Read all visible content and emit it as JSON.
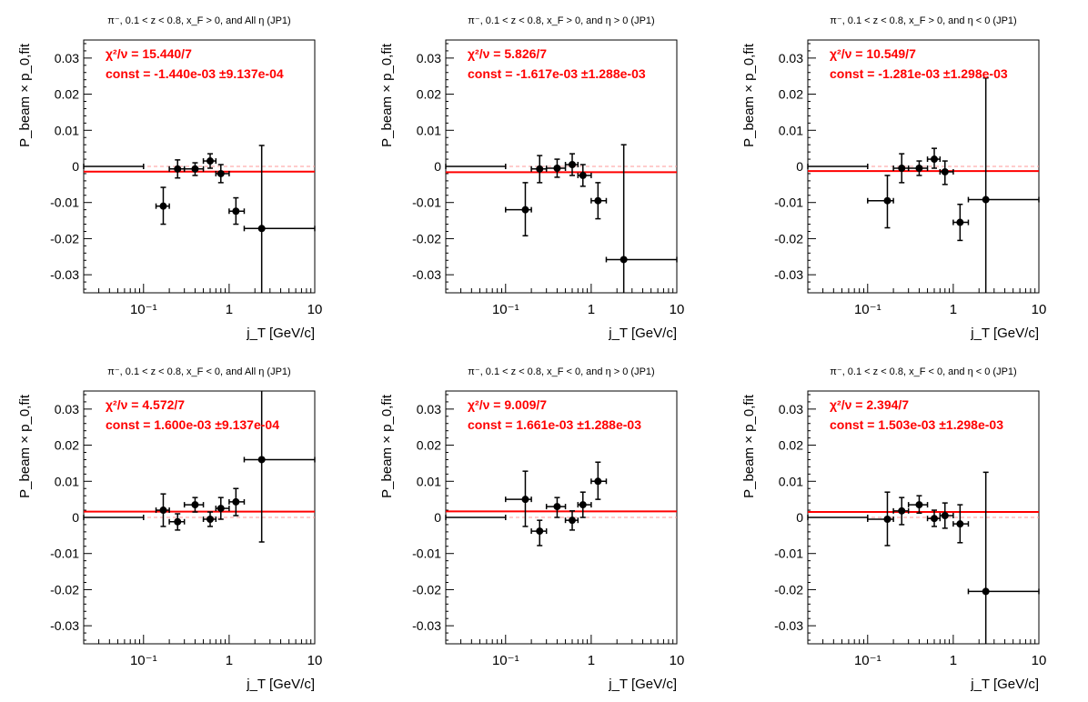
{
  "colors": {
    "fit_line": "#ff0000",
    "annotation": "#ff0000",
    "points": "#000000",
    "zero_line": "#ff9a9a",
    "axes": "#000000"
  },
  "chart_data": [
    {
      "type": "scatter",
      "title": "π⁻, 0.1 < z < 0.8, x_F > 0, and All η (JP1)",
      "xlabel": "j_T [GeV/c]",
      "ylabel": "P_beam × p_0,fit",
      "xscale": "log",
      "xlim": [
        0.02,
        10
      ],
      "ylim": [
        -0.035,
        0.035
      ],
      "xticklabels": [
        "10⁻¹",
        "1",
        "10"
      ],
      "yticklabels": [
        "-0.03",
        "-0.02",
        "-0.01",
        "0",
        "0.01",
        "0.02",
        "0.03"
      ],
      "chi2_label": "χ²/ν = 15.440/7",
      "const_label": "const = -1.440e-03  ±9.137e-04",
      "fit_const": -0.00144,
      "points": [
        {
          "x": 0.1,
          "y": 0.0,
          "xlo": 0.015,
          "xhi": 0.1,
          "ylo": 0.0,
          "yhi": 0.0
        },
        {
          "x": 0.17,
          "y": -0.011,
          "xlo": 0.14,
          "xhi": 0.2,
          "ylo": -0.016,
          "yhi": -0.0058
        },
        {
          "x": 0.25,
          "y": -0.0007,
          "xlo": 0.2,
          "xhi": 0.3,
          "ylo": -0.0032,
          "yhi": 0.0018
        },
        {
          "x": 0.4,
          "y": -0.0007,
          "xlo": 0.3,
          "xhi": 0.5,
          "ylo": -0.0025,
          "yhi": 0.001
        },
        {
          "x": 0.6,
          "y": 0.0015,
          "xlo": 0.5,
          "xhi": 0.7,
          "ylo": -0.0005,
          "yhi": 0.0035
        },
        {
          "x": 0.8,
          "y": -0.002,
          "xlo": 0.7,
          "xhi": 1.0,
          "ylo": -0.0045,
          "yhi": 0.0005
        },
        {
          "x": 1.2,
          "y": -0.0124,
          "xlo": 1.0,
          "xhi": 1.5,
          "ylo": -0.016,
          "yhi": -0.0087
        },
        {
          "x": 2.4,
          "y": -0.0172,
          "xlo": 1.5,
          "xhi": 10,
          "ylo": -0.049,
          "yhi": 0.0058
        }
      ]
    },
    {
      "type": "scatter",
      "title": "π⁻, 0.1 < z < 0.8, x_F > 0, and η > 0 (JP1)",
      "xlabel": "j_T [GeV/c]",
      "ylabel": "P_beam × p_0,fit",
      "xscale": "log",
      "xlim": [
        0.02,
        10
      ],
      "ylim": [
        -0.035,
        0.035
      ],
      "xticklabels": [
        "10⁻¹",
        "1",
        "10"
      ],
      "yticklabels": [
        "-0.03",
        "-0.02",
        "-0.01",
        "0",
        "0.01",
        "0.02",
        "0.03"
      ],
      "chi2_label": "χ²/ν = 5.826/7",
      "const_label": "const = -1.617e-03  ±1.288e-03",
      "fit_const": -0.001617,
      "points": [
        {
          "x": 0.1,
          "y": 0.0,
          "xlo": 0.015,
          "xhi": 0.1,
          "ylo": 0.0,
          "yhi": 0.0
        },
        {
          "x": 0.17,
          "y": -0.012,
          "xlo": 0.1,
          "xhi": 0.2,
          "ylo": -0.0192,
          "yhi": -0.0045
        },
        {
          "x": 0.25,
          "y": -0.0007,
          "xlo": 0.2,
          "xhi": 0.3,
          "ylo": -0.0045,
          "yhi": 0.003
        },
        {
          "x": 0.4,
          "y": -0.0005,
          "xlo": 0.3,
          "xhi": 0.5,
          "ylo": -0.003,
          "yhi": 0.002
        },
        {
          "x": 0.6,
          "y": 0.0005,
          "xlo": 0.5,
          "xhi": 0.7,
          "ylo": -0.0025,
          "yhi": 0.0035
        },
        {
          "x": 0.8,
          "y": -0.0025,
          "xlo": 0.7,
          "xhi": 1.0,
          "ylo": -0.0055,
          "yhi": 0.0005
        },
        {
          "x": 1.2,
          "y": -0.0095,
          "xlo": 1.0,
          "xhi": 1.5,
          "ylo": -0.0145,
          "yhi": -0.0045
        },
        {
          "x": 2.4,
          "y": -0.0258,
          "xlo": 1.5,
          "xhi": 10,
          "ylo": -0.058,
          "yhi": 0.006
        }
      ]
    },
    {
      "type": "scatter",
      "title": "π⁻, 0.1 < z < 0.8, x_F > 0, and η < 0 (JP1)",
      "xlabel": "j_T [GeV/c]",
      "ylabel": "P_beam × p_0,fit",
      "xscale": "log",
      "xlim": [
        0.02,
        10
      ],
      "ylim": [
        -0.035,
        0.035
      ],
      "xticklabels": [
        "10⁻¹",
        "1",
        "10"
      ],
      "yticklabels": [
        "-0.03",
        "-0.02",
        "-0.01",
        "0",
        "0.01",
        "0.02",
        "0.03"
      ],
      "chi2_label": "χ²/ν = 10.549/7",
      "const_label": "const = -1.281e-03  ±1.298e-03",
      "fit_const": -0.001281,
      "points": [
        {
          "x": 0.1,
          "y": 0.0,
          "xlo": 0.015,
          "xhi": 0.1,
          "ylo": 0.0,
          "yhi": 0.0
        },
        {
          "x": 0.17,
          "y": -0.0095,
          "xlo": 0.1,
          "xhi": 0.2,
          "ylo": -0.017,
          "yhi": -0.0025
        },
        {
          "x": 0.25,
          "y": -0.0005,
          "xlo": 0.2,
          "xhi": 0.3,
          "ylo": -0.0045,
          "yhi": 0.0035
        },
        {
          "x": 0.4,
          "y": -0.0005,
          "xlo": 0.3,
          "xhi": 0.5,
          "ylo": -0.0025,
          "yhi": 0.0015
        },
        {
          "x": 0.6,
          "y": 0.002,
          "xlo": 0.5,
          "xhi": 0.7,
          "ylo": -0.0005,
          "yhi": 0.005
        },
        {
          "x": 0.8,
          "y": -0.0015,
          "xlo": 0.7,
          "xhi": 1.0,
          "ylo": -0.005,
          "yhi": 0.0015
        },
        {
          "x": 1.2,
          "y": -0.0155,
          "xlo": 1.0,
          "xhi": 1.5,
          "ylo": -0.0205,
          "yhi": -0.0105
        },
        {
          "x": 2.4,
          "y": -0.0092,
          "xlo": 1.5,
          "xhi": 10,
          "ylo": -0.043,
          "yhi": 0.0245
        }
      ]
    },
    {
      "type": "scatter",
      "title": "π⁻, 0.1 < z < 0.8, x_F < 0, and All η (JP1)",
      "xlabel": "j_T [GeV/c]",
      "ylabel": "P_beam × p_0,fit",
      "xscale": "log",
      "xlim": [
        0.02,
        10
      ],
      "ylim": [
        -0.035,
        0.035
      ],
      "xticklabels": [
        "10⁻¹",
        "1",
        "10"
      ],
      "yticklabels": [
        "-0.03",
        "-0.02",
        "-0.01",
        "0",
        "0.01",
        "0.02",
        "0.03"
      ],
      "chi2_label": "χ²/ν = 4.572/7",
      "const_label": "const = 1.600e-03  ±9.137e-04",
      "fit_const": 0.0016,
      "points": [
        {
          "x": 0.1,
          "y": 0.0,
          "xlo": 0.015,
          "xhi": 0.1,
          "ylo": 0.0,
          "yhi": 0.0
        },
        {
          "x": 0.17,
          "y": 0.002,
          "xlo": 0.14,
          "xhi": 0.2,
          "ylo": -0.0025,
          "yhi": 0.0065
        },
        {
          "x": 0.25,
          "y": -0.0012,
          "xlo": 0.2,
          "xhi": 0.3,
          "ylo": -0.0035,
          "yhi": 0.001
        },
        {
          "x": 0.4,
          "y": 0.0035,
          "xlo": 0.3,
          "xhi": 0.5,
          "ylo": 0.0015,
          "yhi": 0.0055
        },
        {
          "x": 0.6,
          "y": -0.0005,
          "xlo": 0.5,
          "xhi": 0.7,
          "ylo": -0.0025,
          "yhi": 0.0015
        },
        {
          "x": 0.8,
          "y": 0.0025,
          "xlo": 0.7,
          "xhi": 1.0,
          "ylo": -0.0005,
          "yhi": 0.0055
        },
        {
          "x": 1.2,
          "y": 0.0043,
          "xlo": 1.0,
          "xhi": 1.5,
          "ylo": 0.0005,
          "yhi": 0.008
        },
        {
          "x": 2.4,
          "y": 0.016,
          "xlo": 1.5,
          "xhi": 10,
          "ylo": -0.0068,
          "yhi": 0.046
        }
      ]
    },
    {
      "type": "scatter",
      "title": "π⁻, 0.1 < z < 0.8, x_F < 0, and η > 0 (JP1)",
      "xlabel": "j_T [GeV/c]",
      "ylabel": "P_beam × p_0,fit",
      "xscale": "log",
      "xlim": [
        0.02,
        10
      ],
      "ylim": [
        -0.035,
        0.035
      ],
      "xticklabels": [
        "10⁻¹",
        "1",
        "10"
      ],
      "yticklabels": [
        "-0.03",
        "-0.02",
        "-0.01",
        "0",
        "0.01",
        "0.02",
        "0.03"
      ],
      "chi2_label": "χ²/ν = 9.009/7",
      "const_label": "const = 1.661e-03  ±1.288e-03",
      "fit_const": 0.001661,
      "points": [
        {
          "x": 0.1,
          "y": 0.0,
          "xlo": 0.015,
          "xhi": 0.1,
          "ylo": 0.0,
          "yhi": 0.0
        },
        {
          "x": 0.17,
          "y": 0.005,
          "xlo": 0.1,
          "xhi": 0.2,
          "ylo": -0.0025,
          "yhi": 0.0128
        },
        {
          "x": 0.25,
          "y": -0.0038,
          "xlo": 0.2,
          "xhi": 0.3,
          "ylo": -0.0078,
          "yhi": -0.0008
        },
        {
          "x": 0.4,
          "y": 0.003,
          "xlo": 0.3,
          "xhi": 0.5,
          "ylo": 0.0,
          "yhi": 0.0055
        },
        {
          "x": 0.6,
          "y": -0.0008,
          "xlo": 0.5,
          "xhi": 0.7,
          "ylo": -0.0035,
          "yhi": 0.0018
        },
        {
          "x": 0.8,
          "y": 0.0035,
          "xlo": 0.7,
          "xhi": 1.0,
          "ylo": 0.0,
          "yhi": 0.007
        },
        {
          "x": 1.2,
          "y": 0.01,
          "xlo": 1.0,
          "xhi": 1.5,
          "ylo": 0.005,
          "yhi": 0.0153
        }
      ]
    },
    {
      "type": "scatter",
      "title": "π⁻, 0.1 < z < 0.8, x_F < 0, and η < 0 (JP1)",
      "xlabel": "j_T [GeV/c]",
      "ylabel": "P_beam × p_0,fit",
      "xscale": "log",
      "xlim": [
        0.02,
        10
      ],
      "ylim": [
        -0.035,
        0.035
      ],
      "xticklabels": [
        "10⁻¹",
        "1",
        "10"
      ],
      "yticklabels": [
        "-0.03",
        "-0.02",
        "-0.01",
        "0",
        "0.01",
        "0.02",
        "0.03"
      ],
      "chi2_label": "χ²/ν = 2.394/7",
      "const_label": "const = 1.503e-03  ±1.298e-03",
      "fit_const": 0.001503,
      "points": [
        {
          "x": 0.1,
          "y": 0.0,
          "xlo": 0.015,
          "xhi": 0.1,
          "ylo": 0.0,
          "yhi": 0.0
        },
        {
          "x": 0.17,
          "y": -0.0005,
          "xlo": 0.1,
          "xhi": 0.2,
          "ylo": -0.0078,
          "yhi": 0.007
        },
        {
          "x": 0.25,
          "y": 0.0018,
          "xlo": 0.2,
          "xhi": 0.3,
          "ylo": -0.002,
          "yhi": 0.0055
        },
        {
          "x": 0.4,
          "y": 0.0035,
          "xlo": 0.3,
          "xhi": 0.5,
          "ylo": 0.0012,
          "yhi": 0.006
        },
        {
          "x": 0.6,
          "y": -0.0003,
          "xlo": 0.5,
          "xhi": 0.7,
          "ylo": -0.0025,
          "yhi": 0.002
        },
        {
          "x": 0.8,
          "y": 0.0005,
          "xlo": 0.7,
          "xhi": 1.0,
          "ylo": -0.003,
          "yhi": 0.004
        },
        {
          "x": 1.2,
          "y": -0.0018,
          "xlo": 1.0,
          "xhi": 1.5,
          "ylo": -0.007,
          "yhi": 0.0035
        },
        {
          "x": 2.4,
          "y": -0.0205,
          "xlo": 1.5,
          "xhi": 10,
          "ylo": -0.054,
          "yhi": 0.0125
        }
      ]
    }
  ]
}
